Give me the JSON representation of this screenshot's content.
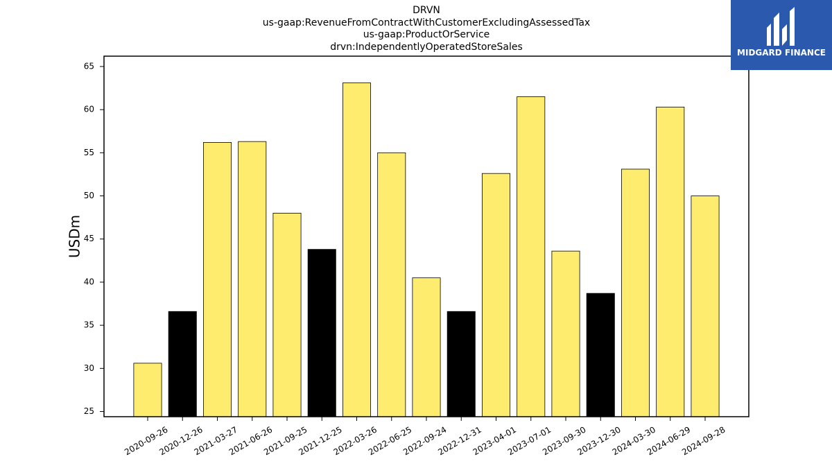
{
  "title": {
    "lines": [
      "DRVN",
      "us-gaap:RevenueFromContractWithCustomerExcludingAssessedTax",
      "us-gaap:ProductOrService",
      "drvn:IndependentlyOperatedStoreSales"
    ]
  },
  "logo": {
    "text": "MIDGARD FINANCE",
    "icon": "midgard-logo-icon",
    "color": "#2a59ae"
  },
  "chart_data": {
    "type": "bar",
    "categories": [
      "2020-09-26",
      "2020-12-26",
      "2021-03-27",
      "2021-06-26",
      "2021-09-25",
      "2021-12-25",
      "2022-03-26",
      "2022-06-25",
      "2022-09-24",
      "2022-12-31",
      "2023-04-01",
      "2023-07-01",
      "2023-09-30",
      "2023-12-30",
      "2024-03-30",
      "2024-06-29",
      "2024-09-28"
    ],
    "values": [
      30.6,
      36.6,
      56.2,
      56.3,
      48.0,
      43.8,
      63.1,
      55.0,
      40.5,
      36.6,
      52.6,
      61.5,
      43.6,
      38.7,
      53.1,
      60.3,
      50.0
    ],
    "bar_colors": [
      "#feec6f",
      "#000000",
      "#feec6f",
      "#feec6f",
      "#feec6f",
      "#000000",
      "#feec6f",
      "#feec6f",
      "#feec6f",
      "#000000",
      "#feec6f",
      "#feec6f",
      "#feec6f",
      "#000000",
      "#feec6f",
      "#feec6f",
      "#feec6f"
    ],
    "ylabel": "USDm",
    "xlabel": "",
    "ylim": [
      24.4,
      66.2
    ],
    "yticks": [
      25,
      30,
      35,
      40,
      45,
      50,
      55,
      60,
      65
    ],
    "grid": false,
    "legend": "none"
  }
}
